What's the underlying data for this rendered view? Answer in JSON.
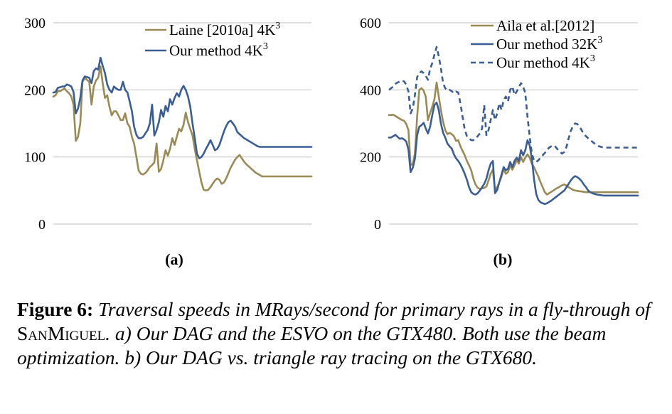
{
  "chart_data": [
    {
      "type": "line",
      "panel_label": "(a)",
      "ylim": [
        0,
        300
      ],
      "yticks": [
        "0",
        "100",
        "200",
        "300"
      ],
      "grid": true,
      "legend_position": "top-right",
      "x": [
        0,
        1,
        2,
        3,
        4,
        5,
        6,
        7,
        8,
        9,
        10,
        11,
        12,
        13,
        14,
        15,
        16,
        17,
        18,
        19,
        20,
        21,
        22,
        23,
        24,
        25,
        26,
        27,
        28,
        29,
        30,
        31,
        32,
        33,
        34,
        35,
        36,
        37,
        38,
        39,
        40,
        41,
        42,
        43,
        44,
        45,
        46,
        47,
        48,
        49,
        50,
        51,
        52,
        53,
        54,
        55,
        56,
        57,
        58,
        59,
        60,
        61,
        62,
        63,
        64,
        65,
        66,
        67,
        68,
        69,
        70,
        71,
        72,
        73,
        74,
        75,
        76,
        77,
        78,
        79,
        80,
        81,
        82,
        83,
        84,
        85,
        86,
        87,
        88,
        89,
        90,
        91,
        92,
        93,
        94,
        95,
        96,
        97,
        98,
        99,
        100,
        101,
        102,
        103,
        104,
        105,
        106,
        107,
        108,
        109,
        110,
        111,
        112,
        113,
        114,
        115
      ],
      "series": [
        {
          "name": "Laine [2010a] 4K",
          "name_sup": "3",
          "color": "#9a8a55",
          "dash": "",
          "values": [
            190,
            192,
            198,
            198,
            200,
            202,
            198,
            195,
            190,
            178,
            124,
            130,
            150,
            212,
            218,
            215,
            212,
            178,
            205,
            214,
            218,
            235,
            210,
            188,
            192,
            175,
            162,
            168,
            168,
            162,
            155,
            155,
            165,
            150,
            145,
            130,
            120,
            100,
            80,
            75,
            74,
            76,
            80,
            85,
            88,
            92,
            120,
            78,
            82,
            95,
            110,
            102,
            112,
            128,
            118,
            130,
            142,
            138,
            148,
            166,
            152,
            142,
            132,
            112,
            95,
            78,
            62,
            51,
            50,
            51,
            55,
            60,
            65,
            68,
            66,
            60,
            62,
            68,
            76,
            84,
            90,
            96,
            100,
            103,
            98,
            93,
            89,
            86,
            83,
            80,
            77,
            75,
            73,
            71,
            71,
            71,
            71,
            71,
            71,
            71,
            71,
            71,
            71,
            71,
            71,
            71,
            71,
            71,
            71,
            71,
            71,
            71,
            71,
            71,
            71,
            71
          ]
        },
        {
          "name": "Our method 4K",
          "name_sup": "3",
          "color": "#3a5e94",
          "dash": "",
          "values": [
            196,
            197,
            203,
            204,
            205,
            205,
            208,
            207,
            205,
            197,
            165,
            172,
            188,
            214,
            220,
            219,
            218,
            210,
            228,
            232,
            230,
            248,
            236,
            225,
            208,
            200,
            196,
            205,
            202,
            200,
            200,
            212,
            200,
            196,
            183,
            168,
            145,
            133,
            128,
            128,
            130,
            135,
            140,
            150,
            178,
            132,
            140,
            152,
            170,
            160,
            176,
            168,
            186,
            178,
            188,
            195,
            190,
            200,
            206,
            200,
            190,
            175,
            150,
            128,
            105,
            98,
            100,
            105,
            112,
            118,
            125,
            118,
            110,
            112,
            118,
            128,
            138,
            146,
            152,
            154,
            150,
            145,
            137,
            134,
            131,
            128,
            126,
            124,
            122,
            120,
            118,
            116,
            115,
            115,
            115,
            115,
            115,
            115,
            115,
            115,
            115,
            115,
            115,
            115,
            115,
            115,
            115,
            115,
            115,
            115,
            115,
            115,
            115,
            115,
            115,
            115
          ]
        }
      ]
    },
    {
      "type": "line",
      "panel_label": "(b)",
      "ylim": [
        0,
        600
      ],
      "yticks": [
        "0",
        "200",
        "400",
        "600"
      ],
      "grid": true,
      "legend_position": "top-right",
      "x": [
        0,
        1,
        2,
        3,
        4,
        5,
        6,
        7,
        8,
        9,
        10,
        11,
        12,
        13,
        14,
        15,
        16,
        17,
        18,
        19,
        20,
        21,
        22,
        23,
        24,
        25,
        26,
        27,
        28,
        29,
        30,
        31,
        32,
        33,
        34,
        35,
        36,
        37,
        38,
        39,
        40,
        41,
        42,
        43,
        44,
        45,
        46,
        47,
        48,
        49,
        50,
        51,
        52,
        53,
        54,
        55,
        56,
        57,
        58,
        59,
        60,
        61,
        62,
        63,
        64,
        65,
        66,
        67,
        68,
        69,
        70,
        71,
        72,
        73,
        74,
        75,
        76,
        77,
        78,
        79,
        80,
        81,
        82,
        83,
        84,
        85,
        86,
        87,
        88,
        89,
        90,
        91,
        92,
        93,
        94,
        95,
        96,
        97,
        98,
        99,
        100,
        101,
        102,
        103,
        104,
        105,
        106,
        107,
        108,
        109,
        110,
        111,
        112,
        113,
        114,
        115
      ],
      "series": [
        {
          "name": "Aila et al.[2012]",
          "name_sup": "",
          "color": "#9a8a55",
          "dash": "",
          "values": [
            325,
            325,
            326,
            322,
            318,
            314,
            310,
            308,
            298,
            280,
            175,
            180,
            210,
            320,
            400,
            405,
            398,
            380,
            310,
            330,
            350,
            372,
            422,
            380,
            340,
            305,
            280,
            268,
            272,
            268,
            262,
            248,
            250,
            232,
            218,
            205,
            188,
            175,
            160,
            135,
            118,
            108,
            105,
            106,
            108,
            112,
            130,
            150,
            162,
            102,
            110,
            125,
            142,
            165,
            150,
            155,
            175,
            162,
            175,
            190,
            180,
            200,
            185,
            198,
            208,
            198,
            180,
            170,
            155,
            142,
            125,
            110,
            95,
            88,
            92,
            96,
            100,
            105,
            108,
            112,
            116,
            118,
            115,
            110,
            106,
            102,
            100,
            99,
            98,
            97,
            96,
            95,
            95,
            95,
            95,
            95,
            95,
            95,
            95,
            95,
            95,
            95,
            95,
            95,
            95,
            95,
            95,
            95,
            95,
            95,
            95,
            95,
            95,
            95,
            95,
            95
          ]
        },
        {
          "name": "Our method 32K",
          "name_sup": "3",
          "color": "#3a5e94",
          "dash": "",
          "values": [
            258,
            258,
            262,
            266,
            260,
            254,
            256,
            252,
            246,
            222,
            155,
            168,
            195,
            265,
            290,
            295,
            302,
            285,
            270,
            290,
            325,
            355,
            362,
            340,
            300,
            272,
            258,
            240,
            232,
            225,
            208,
            196,
            188,
            178,
            165,
            150,
            132,
            110,
            95,
            90,
            88,
            92,
            100,
            110,
            120,
            135,
            160,
            180,
            188,
            92,
            102,
            125,
            148,
            170,
            160,
            165,
            185,
            170,
            188,
            198,
            188,
            220,
            205,
            220,
            250,
            235,
            195,
            135,
            90,
            72,
            65,
            62,
            60,
            62,
            66,
            70,
            75,
            80,
            85,
            90,
            95,
            100,
            110,
            120,
            130,
            138,
            143,
            140,
            135,
            128,
            118,
            110,
            100,
            95,
            92,
            90,
            88,
            87,
            86,
            85,
            85,
            85,
            85,
            85,
            85,
            85,
            85,
            85,
            85,
            85,
            85,
            85,
            85,
            85,
            85,
            85
          ]
        },
        {
          "name": "Our method 4K",
          "name_sup": "3",
          "color": "#3a5e94",
          "dash": "7 5",
          "values": [
            400,
            405,
            410,
            418,
            422,
            425,
            428,
            425,
            415,
            395,
            330,
            345,
            385,
            438,
            450,
            455,
            450,
            442,
            430,
            462,
            480,
            505,
            528,
            500,
            465,
            420,
            405,
            398,
            400,
            396,
            390,
            395,
            392,
            360,
            320,
            282,
            262,
            255,
            250,
            250,
            255,
            262,
            270,
            285,
            355,
            265,
            280,
            310,
            340,
            310,
            330,
            360,
            340,
            370,
            380,
            365,
            400,
            410,
            385,
            395,
            408,
            420,
            410,
            390,
            320,
            262,
            210,
            190,
            185,
            190,
            198,
            205,
            212,
            220,
            228,
            232,
            235,
            230,
            222,
            215,
            210,
            215,
            230,
            255,
            278,
            292,
            300,
            298,
            290,
            280,
            268,
            262,
            256,
            250,
            245,
            240,
            236,
            232,
            230,
            228,
            228,
            228,
            228,
            228,
            228,
            228,
            228,
            228,
            228,
            228,
            228,
            228,
            228,
            228,
            228,
            228
          ]
        }
      ]
    }
  ],
  "caption": {
    "lead": "Figure 6:",
    "part1": "Traversal speeds in MRays/second for primary rays in a fly-through of",
    "smallcaps": "SanMiguel",
    "part2": ". a) Our DAG and the ESVO on the GTX480. Both use the beam optimization. b) Our DAG vs. triangle ray tracing on the GTX680."
  }
}
